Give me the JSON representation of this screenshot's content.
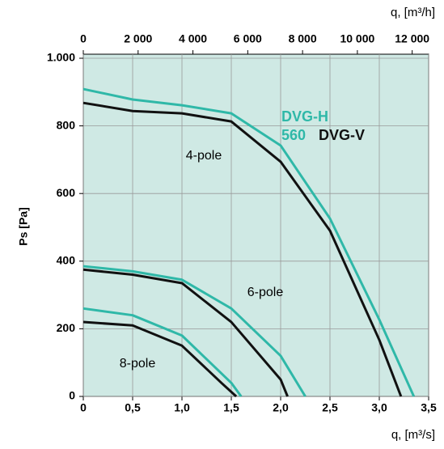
{
  "chart_data": {
    "type": "line",
    "xlabel": "q, [m³/s]",
    "ylabel": "Ps [Pa]",
    "x2label": "q, [m³/h]",
    "xlim": [
      0,
      3.5
    ],
    "ylim": [
      0,
      1000
    ],
    "x2lim": [
      0,
      12600
    ],
    "xticks": [
      0,
      {
        "value": 0.5,
        "label": "0,5"
      },
      {
        "value": 1.0,
        "label": "1,0"
      },
      {
        "value": 1.5,
        "label": "1,5"
      },
      {
        "value": 2.0,
        "label": "2,0"
      },
      {
        "value": 2.5,
        "label": "2,5"
      },
      {
        "value": 3.0,
        "label": "3,0"
      },
      {
        "value": 3.5,
        "label": "3,5"
      }
    ],
    "x2ticks": [
      0,
      {
        "value": 2000,
        "label": "2 000"
      },
      {
        "value": 4000,
        "label": "4 000"
      },
      {
        "value": 6000,
        "label": "6 000"
      },
      {
        "value": 8000,
        "label": "8 000"
      },
      {
        "value": 10000,
        "label": "10 000"
      },
      {
        "value": 12000,
        "label": "12 000"
      }
    ],
    "yticks": [
      0,
      200,
      400,
      600,
      800,
      {
        "value": 1000,
        "label": "1.000"
      }
    ],
    "grid": true,
    "background": "#cfe9e4",
    "legend_texts": [
      {
        "text": "DVG-H",
        "color": "#2fb8a8"
      },
      {
        "text": "560",
        "color": "#2fb8a8"
      },
      {
        "text": "DVG-V",
        "color": "#111111"
      }
    ],
    "annotations": [
      "4-pole",
      "6-pole",
      "8-pole"
    ],
    "series": [
      {
        "color": "#2fb8a8",
        "x": [
          0,
          0.5,
          1.0,
          1.5,
          2.0,
          2.5,
          3.0,
          3.35
        ],
        "values": [
          909,
          878,
          861,
          837,
          742,
          526,
          227,
          0
        ]
      },
      {
        "color": "#111111",
        "x": [
          0,
          0.5,
          1.0,
          1.5,
          2.0,
          2.5,
          3.0,
          3.22
        ],
        "values": [
          868,
          844,
          837,
          813,
          694,
          490,
          167,
          0
        ]
      },
      {
        "color": "#2fb8a8",
        "x": [
          0,
          0.5,
          1.0,
          1.5,
          2.0,
          2.25
        ],
        "values": [
          385,
          370,
          345,
          260,
          120,
          0
        ]
      },
      {
        "color": "#111111",
        "x": [
          0,
          0.5,
          1.0,
          1.5,
          2.0,
          2.07
        ],
        "values": [
          375,
          360,
          335,
          220,
          50,
          0
        ]
      },
      {
        "color": "#2fb8a8",
        "x": [
          0,
          0.5,
          1.0,
          1.5,
          1.6
        ],
        "values": [
          260,
          240,
          180,
          40,
          0
        ]
      },
      {
        "color": "#111111",
        "x": [
          0,
          0.5,
          1.0,
          1.4,
          1.55
        ],
        "values": [
          220,
          210,
          150,
          40,
          0
        ]
      }
    ]
  }
}
